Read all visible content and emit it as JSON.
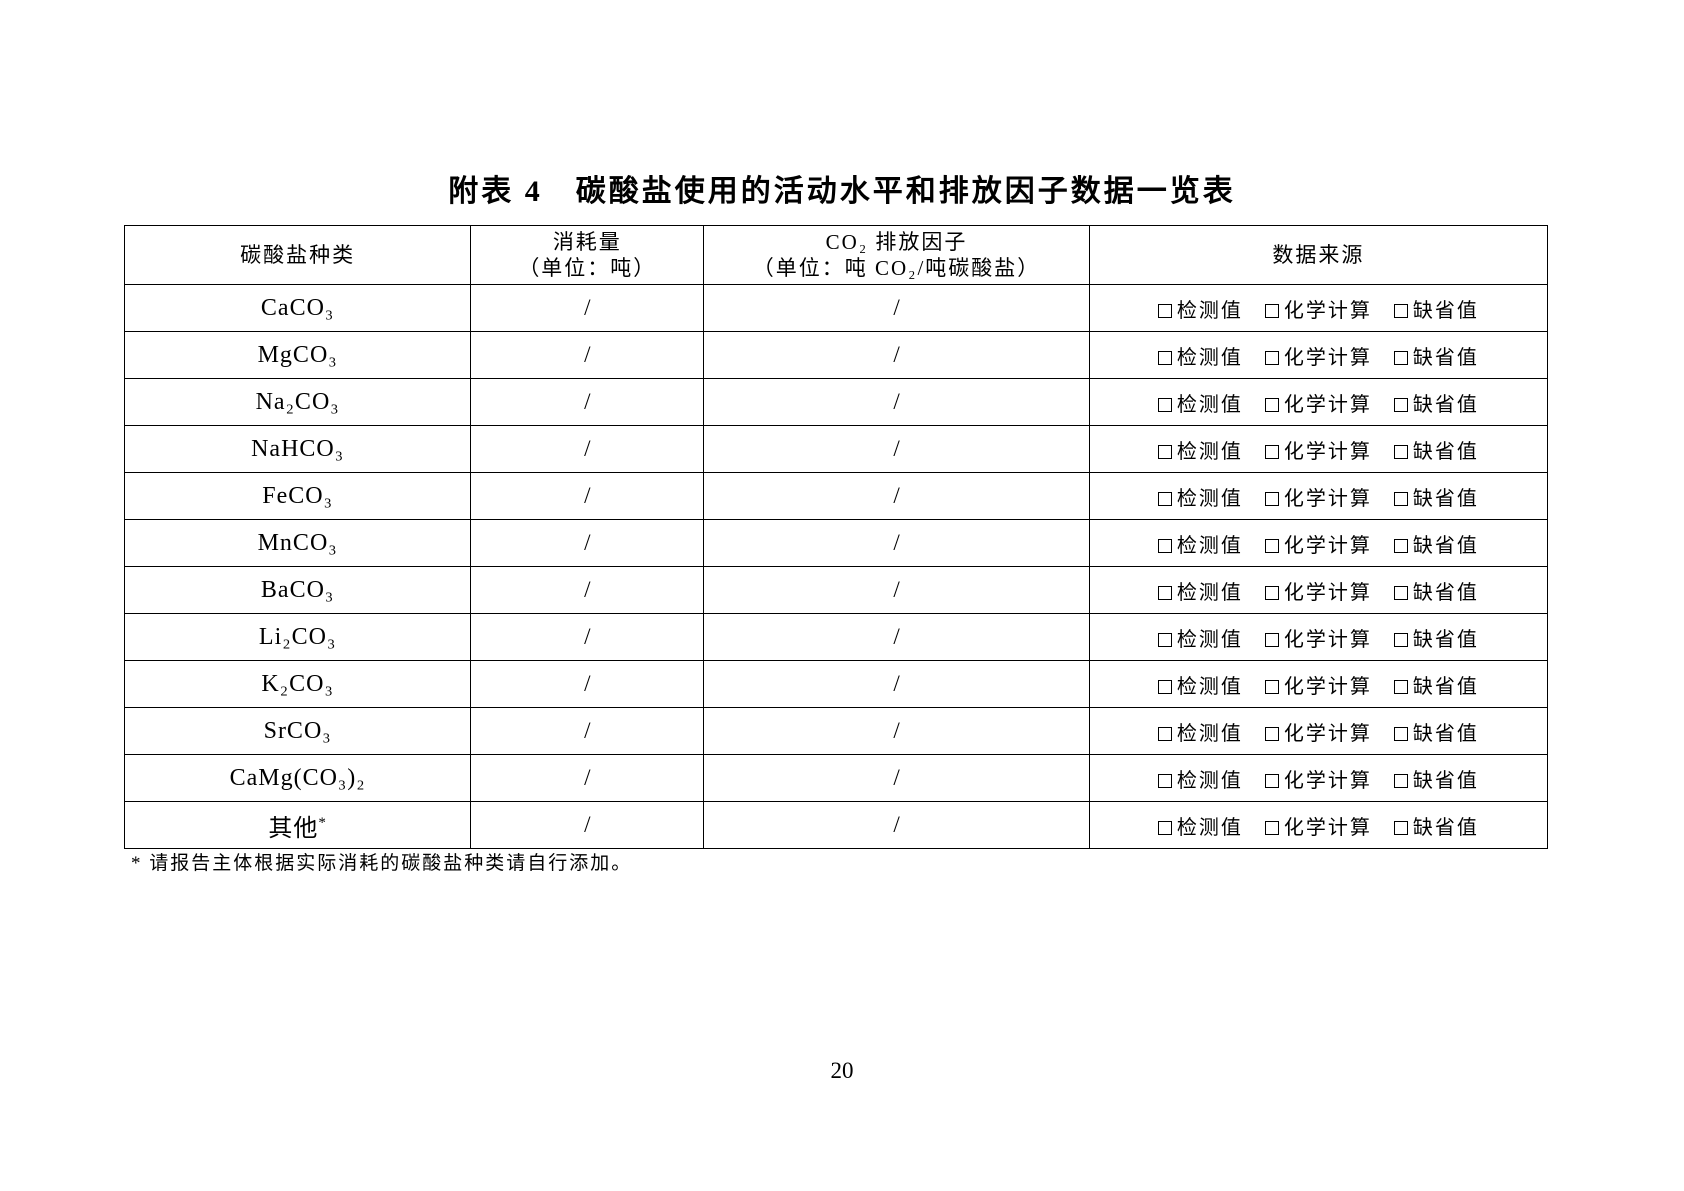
{
  "page": {
    "title": "附表 4　碳酸盐使用的活动水平和排放因子数据一览表",
    "footnote": "* 请报告主体根据实际消耗的碳酸盐种类请自行添加。",
    "page_number": "20"
  },
  "table": {
    "header": {
      "col1": "碳酸盐种类",
      "col2_line1": "消耗量",
      "col2_line2": "（单位：吨）",
      "col3_line1": "CO₂ 排放因子",
      "col3_line2": "（单位：吨 CO₂/吨碳酸盐）",
      "col4": "数据来源"
    },
    "source_options": [
      {
        "id": "measured-value",
        "label": "检测值"
      },
      {
        "id": "chemical-calculation",
        "label": "化学计算"
      },
      {
        "id": "default-value",
        "label": "缺省值"
      }
    ],
    "rows": [
      {
        "type": "CaCO₃",
        "consumption": "/",
        "emission_factor": "/"
      },
      {
        "type": "MgCO₃",
        "consumption": "/",
        "emission_factor": "/"
      },
      {
        "type": "Na₂CO₃",
        "consumption": "/",
        "emission_factor": "/"
      },
      {
        "type": "NaHCO₃",
        "consumption": "/",
        "emission_factor": "/"
      },
      {
        "type": "FeCO₃",
        "consumption": "/",
        "emission_factor": "/"
      },
      {
        "type": "MnCO₃",
        "consumption": "/",
        "emission_factor": "/"
      },
      {
        "type": "BaCO₃",
        "consumption": "/",
        "emission_factor": "/"
      },
      {
        "type": "Li₂CO₃",
        "consumption": "/",
        "emission_factor": "/"
      },
      {
        "type": "K₂CO₃",
        "consumption": "/",
        "emission_factor": "/"
      },
      {
        "type": "SrCO₃",
        "consumption": "/",
        "emission_factor": "/"
      },
      {
        "type": "CaMg(CO₃)₂",
        "consumption": "/",
        "emission_factor": "/"
      },
      {
        "type": "其他",
        "type_sup": "*",
        "consumption": "/",
        "emission_factor": "/"
      }
    ]
  }
}
